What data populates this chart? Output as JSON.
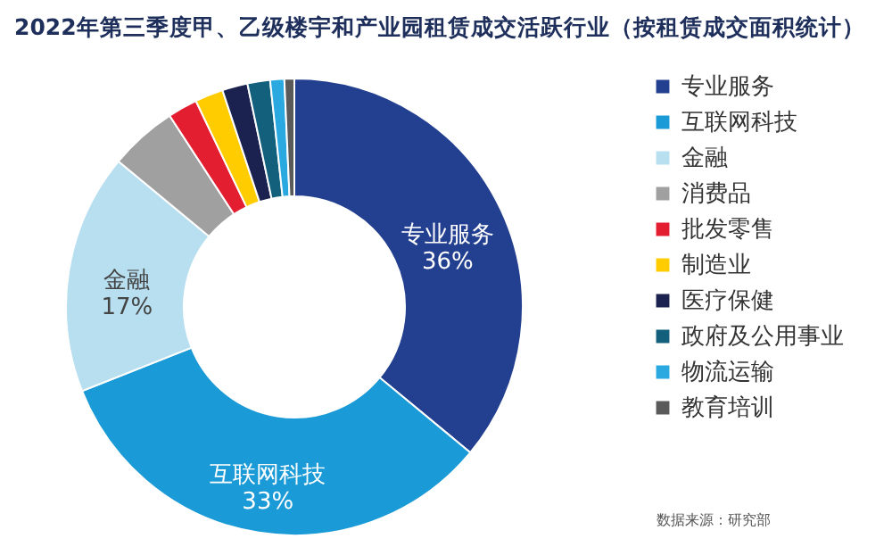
{
  "chart_data": {
    "type": "donut",
    "title": "2022年第三季度甲、乙级楼宇和产业园租赁成交活跃行业（按租赁成交面积统计）",
    "categories": [
      "专业服务",
      "互联网科技",
      "金融",
      "消费品",
      "批发零售",
      "制造业",
      "医疗保健",
      "政府及公用事业",
      "物流运输",
      "教育培训"
    ],
    "values": [
      36,
      33,
      17,
      4.8,
      2.1,
      2.0,
      1.8,
      1.6,
      1.0,
      0.7
    ],
    "colors": [
      "#233f8f",
      "#1a9ad6",
      "#b7dff0",
      "#a0a0a0",
      "#e31e30",
      "#ffcc00",
      "#1b2250",
      "#13607c",
      "#2aa9e0",
      "#5a5a5a"
    ],
    "value_labels": [
      "36%",
      "33%",
      "17%",
      null,
      null,
      null,
      null,
      null,
      null,
      null
    ],
    "legend": "right",
    "annotations": [
      "数据来源：研究部"
    ]
  }
}
